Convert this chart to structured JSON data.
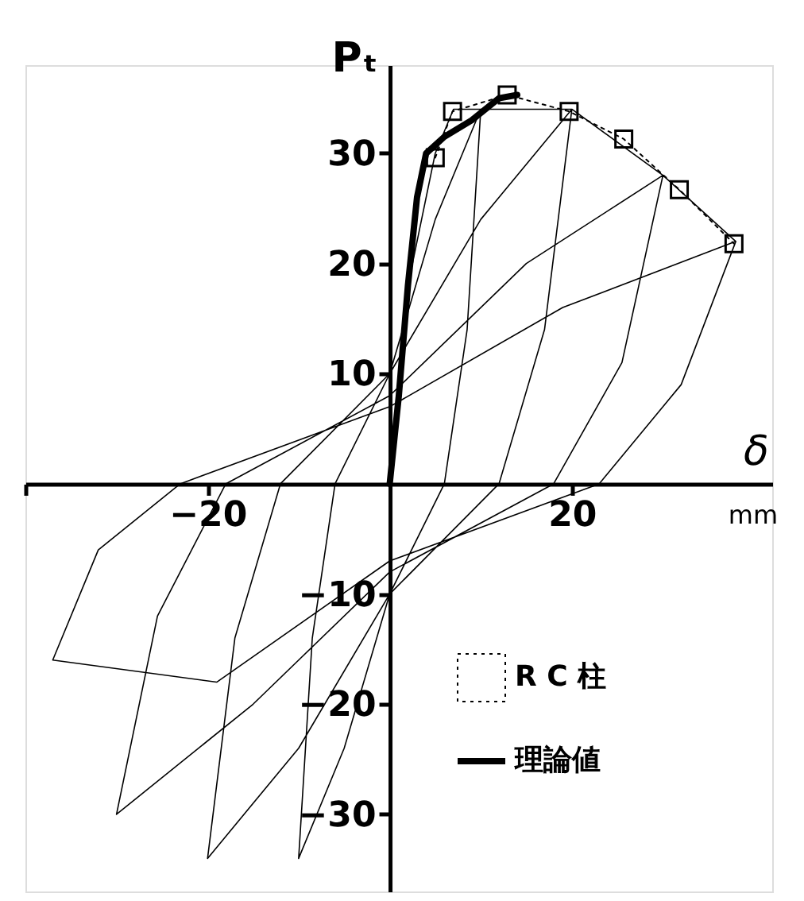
{
  "chart_data": {
    "type": "line",
    "xlabel": "δ",
    "ylabel": "Pₜ",
    "annotations": [
      "mm"
    ],
    "xlim": [
      -40,
      42
    ],
    "ylim": [
      -37,
      38
    ],
    "xticks": [
      {
        "value": -40,
        "label": null
      },
      -20,
      20
    ],
    "yticks": [
      -30,
      -20,
      -10,
      10,
      20,
      30
    ],
    "grid": false,
    "legend": "bottom right",
    "series": [
      {
        "color": "#000000",
        "marker": "none",
        "line_style": "solid",
        "x": [
          0,
          2,
          5,
          7,
          10,
          8.5,
          6,
          0,
          -5,
          -10,
          -8.5,
          -6,
          0,
          5,
          10,
          20,
          17,
          12,
          0,
          -10,
          -20,
          -17,
          -12,
          0,
          10,
          20,
          30,
          25.5,
          18,
          0,
          -15,
          -30,
          -25.5,
          -18,
          0,
          15,
          30,
          38,
          32,
          23,
          0,
          -19,
          -37,
          -32,
          -23,
          0,
          19,
          38
        ],
        "values": [
          0,
          18,
          30,
          34,
          34,
          14,
          0,
          -10,
          -24,
          -34,
          -14,
          0,
          10,
          24,
          34,
          34,
          14,
          0,
          -10,
          -24,
          -34,
          -14,
          0,
          10,
          24,
          34,
          28,
          11,
          0,
          -8,
          -20,
          -30,
          -12,
          0,
          8,
          20,
          28,
          22,
          9,
          0,
          -7,
          -18,
          -16,
          -6,
          0,
          7,
          16,
          22
        ]
      },
      {
        "name": "R C 柱",
        "color": "#000000",
        "marker": "square",
        "line_style": "dotted",
        "x": [
          5.0,
          6.9,
          12.9,
          19.7,
          25.7,
          31.8,
          37.8
        ],
        "values": [
          29.6,
          33.8,
          35.3,
          33.8,
          31.3,
          26.7,
          21.8
        ]
      },
      {
        "name": "理論値",
        "color": "#000000",
        "marker": "none",
        "line_style": "solid",
        "x": [
          0,
          1,
          2,
          3,
          4,
          6,
          9,
          12,
          14
        ],
        "values": [
          0,
          8,
          18,
          26,
          30,
          31.5,
          33,
          35,
          35.3
        ]
      }
    ]
  }
}
